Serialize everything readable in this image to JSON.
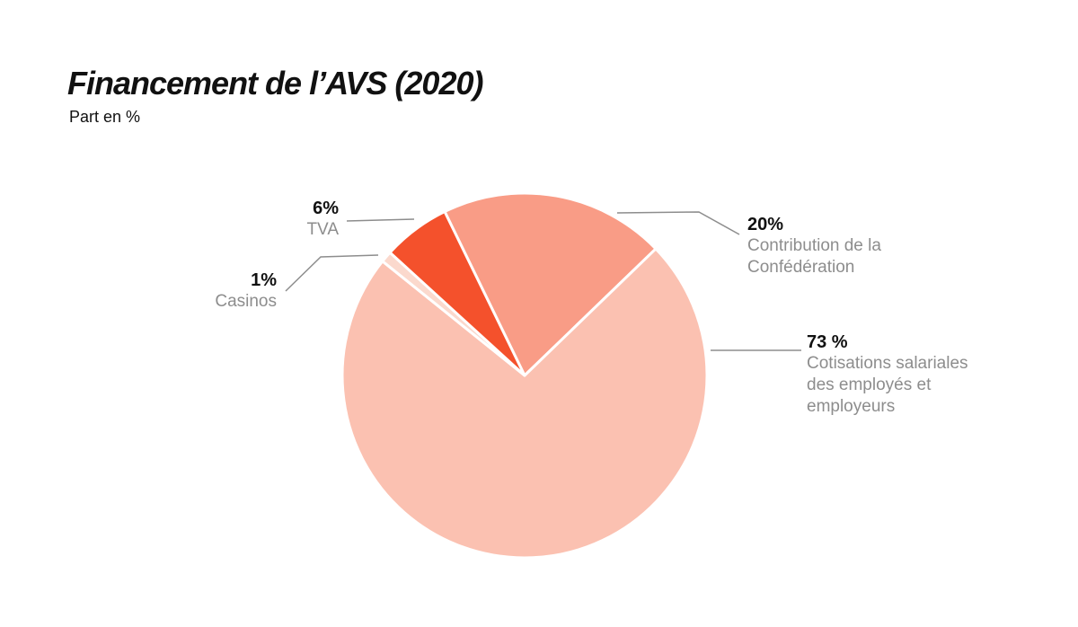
{
  "title": "Financement de l’AVS (2020)",
  "subtitle": "Part en %",
  "colors": {
    "background": "#ffffff",
    "text_dark": "#111111",
    "text_gray": "#8d8d8d",
    "leader_line": "#8d8d8d",
    "slice_gap": "#ffffff"
  },
  "chart_data": {
    "type": "pie",
    "title": "Financement de l’AVS (2020)",
    "subtitle": "Part en %",
    "unit": "%",
    "legend_position": "callout-labels",
    "start_angle_deg_from_top": -26,
    "direction": "clockwise",
    "slices": [
      {
        "id": "contribution-confederation",
        "label": "Contribution de la Confédération",
        "value": 20,
        "value_label": "20%",
        "color": "#F99C86"
      },
      {
        "id": "cotisations-salariales",
        "label": "Cotisations salariales des employés et employeurs",
        "value": 73,
        "value_label": "73 %",
        "color": "#FBC1B1"
      },
      {
        "id": "casinos",
        "label": "Casinos",
        "value": 1,
        "value_label": "1%",
        "color": "#FBD9CD"
      },
      {
        "id": "tva",
        "label": "TVA",
        "value": 6,
        "value_label": "6%",
        "color": "#F4512C"
      }
    ]
  }
}
